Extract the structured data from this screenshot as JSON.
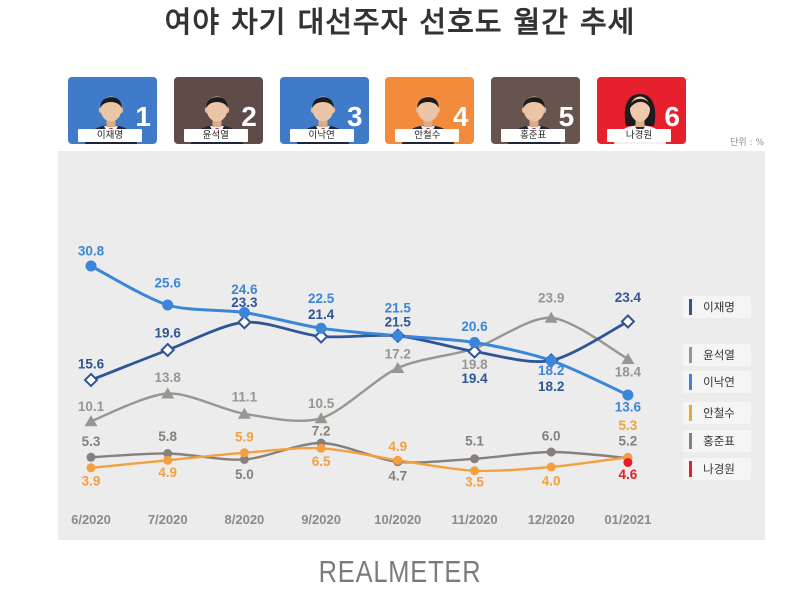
{
  "candidates": [
    {
      "name": "이재명",
      "rank": 1,
      "color": "#3f7bc9"
    },
    {
      "name": "윤석열",
      "rank": 2,
      "color": "#5f4c48"
    },
    {
      "name": "이낙연",
      "rank": 3,
      "color": "#3f7bc9"
    },
    {
      "name": "안철수",
      "rank": 4,
      "color": "#f28b3c"
    },
    {
      "name": "홍준표",
      "rank": 5,
      "color": "#67544f"
    },
    {
      "name": "나경원",
      "rank": 6,
      "color": "#e6212d"
    }
  ],
  "chart_data": {
    "type": "line",
    "title": "여야 차기 대선주자 선호도 월간 추세",
    "unit_label": "단위 : %",
    "x": [
      "6/2020",
      "7/2020",
      "8/2020",
      "9/2020",
      "10/2020",
      "11/2020",
      "12/2020",
      "01/2021"
    ],
    "series": [
      {
        "name": "이재명",
        "color": "#2f5597",
        "values": [
          15.6,
          19.6,
          23.3,
          21.4,
          21.5,
          19.4,
          18.2,
          23.4
        ]
      },
      {
        "name": "윤석열",
        "color": "#999591",
        "values": [
          10.1,
          13.8,
          11.1,
          10.5,
          17.2,
          19.8,
          23.9,
          18.4
        ]
      },
      {
        "name": "이낙연",
        "color": "#3b86d8",
        "values": [
          30.8,
          25.6,
          24.6,
          22.5,
          21.5,
          20.6,
          18.2,
          13.6
        ]
      },
      {
        "name": "안철수",
        "color": "#f4a040",
        "values": [
          3.9,
          4.9,
          5.9,
          6.5,
          4.9,
          3.5,
          4.0,
          5.3
        ]
      },
      {
        "name": "홍준표",
        "color": "#85807c",
        "values": [
          5.3,
          5.8,
          5.0,
          7.2,
          4.7,
          5.1,
          6.0,
          5.2
        ]
      },
      {
        "name": "나경원",
        "color": "#e3202b",
        "values": [
          null,
          null,
          null,
          null,
          null,
          null,
          null,
          4.6
        ]
      }
    ],
    "grid": false,
    "legend": "right"
  },
  "logo": "REALMETER"
}
